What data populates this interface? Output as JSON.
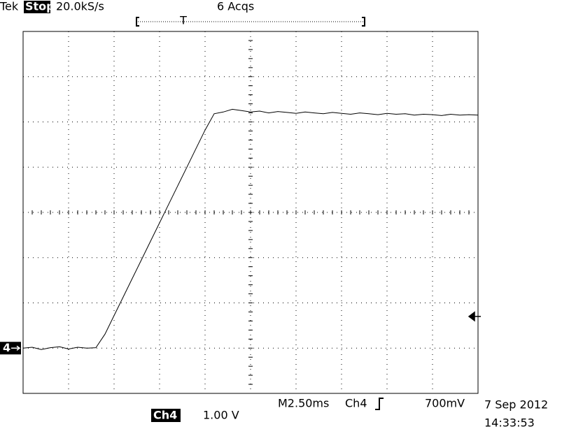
{
  "chart_data": {
    "type": "line",
    "x": [
      0,
      0.5,
      1,
      1.5,
      2,
      2.5,
      3,
      3.5,
      4,
      4.5,
      5,
      5.5,
      6,
      6.5,
      7,
      7.5,
      8,
      8.5,
      9,
      9.5,
      10,
      10.5,
      11,
      11.5,
      12,
      12.5,
      13,
      13.5,
      14,
      14.5,
      15,
      15.5,
      16,
      16.5,
      17,
      17.5,
      18,
      18.5,
      19,
      19.5,
      20,
      20.5,
      21,
      21.5,
      22,
      22.5,
      23,
      23.5,
      24,
      24.5,
      25
    ],
    "values": [
      0,
      0.02,
      -0.03,
      0.01,
      0.03,
      -0.02,
      0.02,
      0,
      0.01,
      0.31,
      0.72,
      1.13,
      1.54,
      1.95,
      2.36,
      2.77,
      3.18,
      3.59,
      4.0,
      4.41,
      4.82,
      5.18,
      5.22,
      5.28,
      5.25,
      5.22,
      5.24,
      5.2,
      5.23,
      5.21,
      5.19,
      5.22,
      5.2,
      5.18,
      5.21,
      5.19,
      5.17,
      5.2,
      5.18,
      5.16,
      5.19,
      5.17,
      5.18,
      5.15,
      5.17,
      5.16,
      5.14,
      5.17,
      5.15,
      5.16,
      5.15
    ],
    "color": "#000000",
    "xlim": [
      0,
      25
    ],
    "xticks": [
      0,
      2.5,
      5,
      7.5,
      10,
      12.5,
      15,
      17.5,
      20,
      22.5,
      25
    ],
    "ylim": [
      -1,
      7
    ],
    "yticks": [
      -1,
      0,
      1,
      2,
      3,
      4,
      5,
      6,
      7
    ],
    "grid": true,
    "ground_level": 0,
    "trigger_level": 0.7,
    "annotations": {
      "brand": "Tek",
      "state": "Stop:",
      "rate": "20.0kS/s",
      "acqs": "6 Acqs",
      "trigger_marker": "T",
      "channel_marker": "4",
      "timebase": "M2.50ms",
      "trigger_channel": "Ch4",
      "trigger_value": "700mV",
      "channel": "Ch4",
      "scale": "1.00 V",
      "date": "7 Sep 2012",
      "time": "14:33:53"
    }
  }
}
